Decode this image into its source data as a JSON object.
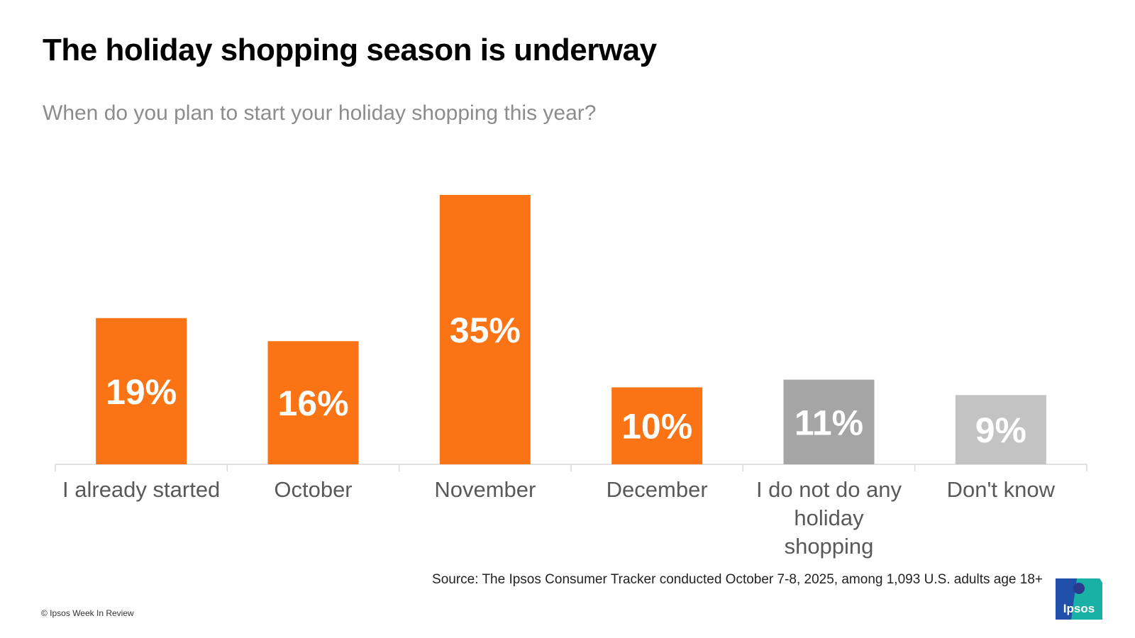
{
  "title": "The holiday shopping season is underway",
  "subtitle": "When do you plan to start your holiday shopping this year?",
  "source": "Source: The Ipsos Consumer Tracker conducted  October 7-8, 2025, among 1,093 U.S. adults age 18+",
  "copyright": "© Ipsos Week In Review",
  "logo_text": "Ipsos",
  "colors": {
    "orange": "#fa7314",
    "dark_gray": "#a5a5a5",
    "light_gray": "#c3c3c3",
    "axis": "#d9d9d9",
    "category_text": "#595959",
    "logo_blue": "#1f4fa8",
    "logo_teal": "#19b0a6"
  },
  "chart_data": {
    "type": "bar",
    "title": "The holiday shopping season is underway",
    "subtitle": "When do you plan to start your holiday shopping this year?",
    "categories": [
      [
        "I already started"
      ],
      [
        "October"
      ],
      [
        "November"
      ],
      [
        "December"
      ],
      [
        "I do not do any",
        "holiday",
        "shopping"
      ],
      [
        "Don't know"
      ]
    ],
    "values": [
      19,
      16,
      35,
      10,
      11,
      9
    ],
    "labels": [
      "19%",
      "16%",
      "35%",
      "10%",
      "11%",
      "9%"
    ],
    "bar_colors": [
      "#fa7314",
      "#fa7314",
      "#fa7314",
      "#fa7314",
      "#a5a5a5",
      "#c3c3c3"
    ],
    "ylim": [
      0,
      35
    ],
    "grid": false,
    "legend": "none"
  }
}
